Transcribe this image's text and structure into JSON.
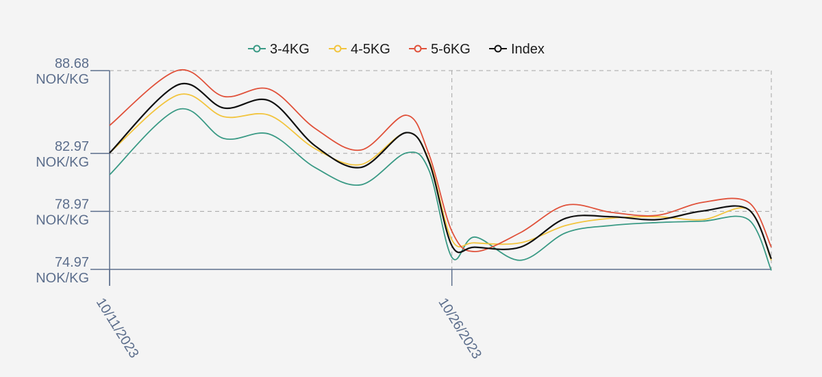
{
  "chart_data": {
    "type": "line",
    "title": "",
    "xlabel": "",
    "ylabel": "",
    "x_tick_labels": [
      "10/11/2023",
      "10/26/2023"
    ],
    "y_ticks": [
      {
        "value": 88.68,
        "label": "88.68",
        "unit": "NOK/KG"
      },
      {
        "value": 82.97,
        "label": "82.97",
        "unit": "NOK/KG"
      },
      {
        "value": 78.97,
        "label": "78.97",
        "unit": "NOK/KG"
      },
      {
        "value": 74.97,
        "label": "74.97",
        "unit": "NOK/KG"
      }
    ],
    "ylim": [
      74.97,
      88.68
    ],
    "grid": true,
    "legend_position": "top-center",
    "x": [
      "10/11/2023",
      "10/14/2023",
      "10/16/2023",
      "10/18/2023",
      "10/20/2023",
      "10/22/2023",
      "10/24/2023",
      "10/25/2023",
      "10/26/2023",
      "10/27/2023",
      "10/29/2023",
      "10/31/2023",
      "11/02/2023",
      "11/04/2023",
      "11/06/2023",
      "11/08/2023",
      "11/09/2023"
    ],
    "series": [
      {
        "name": "3-4KG",
        "color": "#3a9a85",
        "values": [
          81.5,
          86.0,
          84.0,
          84.3,
          82.0,
          80.8,
          83.0,
          81.8,
          75.8,
          77.2,
          75.6,
          77.5,
          78.0,
          78.2,
          78.3,
          78.4,
          74.9
        ]
      },
      {
        "name": "4-5KG",
        "color": "#f2c43d",
        "values": [
          83.0,
          87.0,
          85.5,
          85.6,
          83.3,
          82.2,
          84.4,
          82.5,
          77.0,
          76.8,
          76.8,
          78.0,
          78.5,
          78.6,
          78.4,
          79.1,
          75.6
        ]
      },
      {
        "name": "5-6KG",
        "color": "#e0513a",
        "values": [
          84.9,
          88.7,
          86.9,
          87.4,
          84.7,
          83.2,
          85.6,
          82.9,
          77.6,
          76.2,
          77.5,
          79.4,
          78.9,
          78.7,
          79.6,
          79.6,
          76.5
        ]
      },
      {
        "name": "Index",
        "color": "#111111",
        "values": [
          83.0,
          87.7,
          86.1,
          86.6,
          83.5,
          82.0,
          84.4,
          82.4,
          76.6,
          76.5,
          76.5,
          78.5,
          78.6,
          78.4,
          79.0,
          79.1,
          75.7
        ]
      }
    ]
  }
}
